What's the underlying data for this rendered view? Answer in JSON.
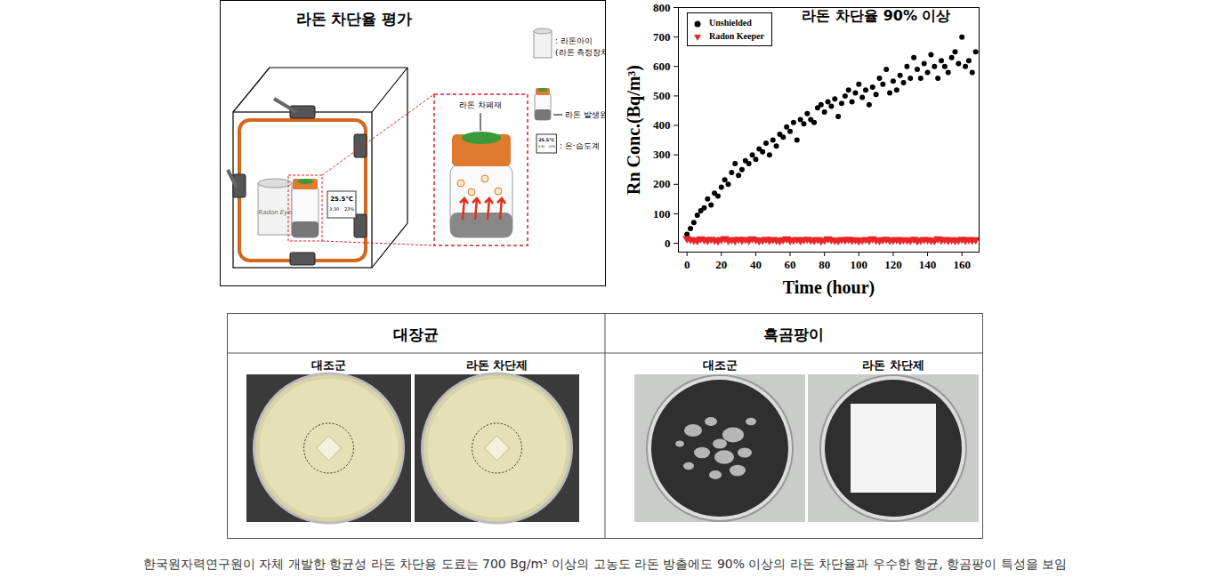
{
  "diagram": {
    "title": "라돈 차단율 평가",
    "legend": [
      {
        "label": ": 라돈아이",
        "note": "(라돈 측정장치)"
      },
      {
        "label": "라돈 발생원"
      },
      {
        "label": ": 온·습도계"
      }
    ],
    "inset_label": "라돈 차폐재",
    "device_label": "Radon Eye",
    "thermometer": {
      "temperature": "25.5℃",
      "time": "3:30",
      "humidity": "23%"
    }
  },
  "chart_data": {
    "type": "scatter",
    "title": "라돈 차단율 90% 이상",
    "x_label": "Time (hour)",
    "y_label": "Rn Conc.(Bq/m³)",
    "x": [
      0,
      2,
      4,
      6,
      8,
      10,
      12,
      14,
      16,
      18,
      20,
      22,
      24,
      26,
      28,
      30,
      32,
      34,
      36,
      38,
      40,
      42,
      44,
      46,
      48,
      50,
      52,
      54,
      56,
      58,
      60,
      62,
      64,
      66,
      68,
      70,
      72,
      74,
      76,
      78,
      80,
      82,
      84,
      86,
      88,
      90,
      92,
      94,
      96,
      98,
      100,
      102,
      104,
      106,
      108,
      110,
      112,
      114,
      116,
      118,
      120,
      122,
      124,
      126,
      128,
      130,
      132,
      134,
      136,
      138,
      140,
      142,
      144,
      146,
      148,
      150,
      152,
      154,
      156,
      158,
      160,
      162,
      164,
      166,
      168
    ],
    "series": [
      {
        "name": "Unshielded",
        "color": "#000000",
        "marker": "circle",
        "values": [
          30,
          50,
          70,
          95,
          110,
          120,
          150,
          130,
          170,
          160,
          190,
          215,
          200,
          240,
          270,
          230,
          250,
          280,
          270,
          300,
          285,
          320,
          310,
          340,
          300,
          350,
          330,
          370,
          360,
          395,
          380,
          410,
          350,
          420,
          405,
          440,
          420,
          410,
          460,
          470,
          445,
          480,
          465,
          490,
          430,
          475,
          500,
          520,
          480,
          510,
          540,
          495,
          520,
          470,
          530,
          505,
          560,
          540,
          590,
          510,
          550,
          520,
          570,
          545,
          600,
          560,
          630,
          590,
          560,
          610,
          580,
          640,
          600,
          560,
          620,
          600,
          580,
          630,
          650,
          610,
          700,
          600,
          620,
          580,
          650
        ]
      },
      {
        "name": "Radon Keeper",
        "color": "#e8242a",
        "marker": "triangle-down",
        "values": [
          15,
          12,
          10,
          8,
          14,
          11,
          9,
          13,
          10,
          7,
          12,
          15,
          9,
          11,
          8,
          13,
          10,
          12,
          9,
          14,
          11,
          8,
          10,
          13,
          9,
          12,
          10,
          7,
          11,
          14,
          9,
          10,
          12,
          8,
          11,
          13,
          10,
          9,
          12,
          7,
          10,
          14,
          11,
          9,
          8,
          12,
          10,
          13,
          9,
          11,
          7,
          10,
          12,
          9,
          14,
          10,
          8,
          11,
          13,
          9,
          10,
          12,
          8,
          11,
          10,
          9,
          13,
          7,
          10,
          12,
          11,
          9,
          8,
          14,
          10,
          12,
          9,
          11,
          8,
          10,
          13,
          9,
          12,
          10,
          11
        ]
      }
    ],
    "xlim": [
      -5,
      170
    ],
    "xticks": [
      0,
      20,
      40,
      60,
      80,
      100,
      120,
      140,
      160
    ],
    "ylim": [
      -30,
      800
    ],
    "yticks": [
      0,
      100,
      200,
      300,
      400,
      500,
      600,
      700,
      800
    ],
    "grid": false,
    "legend": "top-left"
  },
  "results": {
    "columns": [
      {
        "header": "대장균",
        "panels": [
          "대조군",
          "라돈 차단제"
        ]
      },
      {
        "header": "흑곰팡이",
        "panels": [
          "대조군",
          "라돈 차단제"
        ]
      }
    ]
  },
  "caption": "한국원자력연구원이 자체 개발한 항균성 라돈 차단용 도료는 700 Bg/m³ 이상의 고농도 라돈 방출에도 90% 이상의 라돈 차단율과 우수한 항균, 항곰팡이 특성을 보임"
}
